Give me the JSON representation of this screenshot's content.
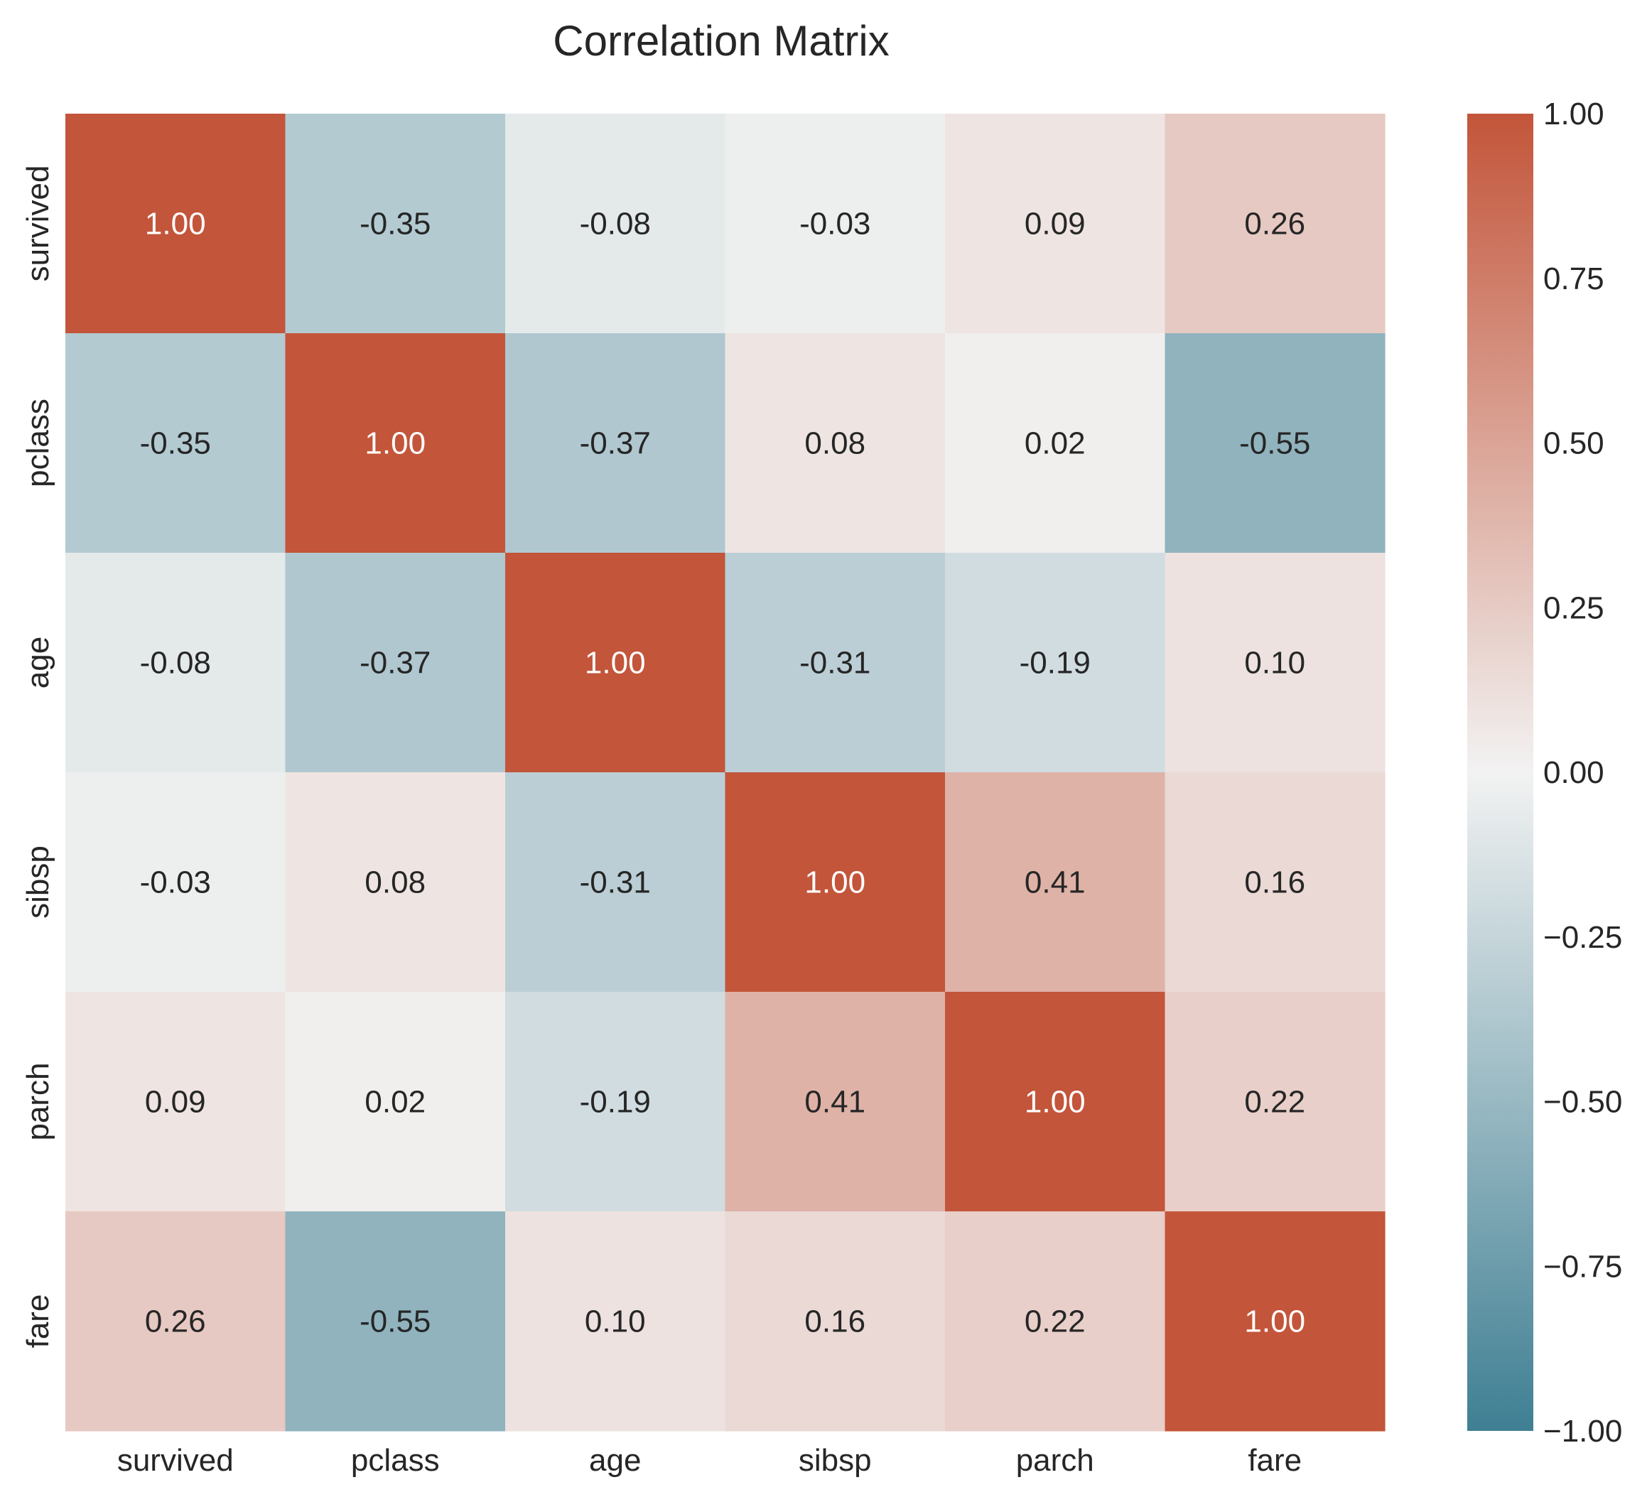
{
  "chart_data": {
    "type": "heatmap",
    "title": "Correlation Matrix",
    "x_labels": [
      "survived",
      "pclass",
      "age",
      "sibsp",
      "parch",
      "fare"
    ],
    "y_labels": [
      "survived",
      "pclass",
      "age",
      "sibsp",
      "parch",
      "fare"
    ],
    "values": [
      [
        1.0,
        -0.35,
        -0.08,
        -0.03,
        0.09,
        0.26
      ],
      [
        -0.35,
        1.0,
        -0.37,
        0.08,
        0.02,
        -0.55
      ],
      [
        -0.08,
        -0.37,
        1.0,
        -0.31,
        -0.19,
        0.1
      ],
      [
        -0.03,
        0.08,
        -0.31,
        1.0,
        0.41,
        0.16
      ],
      [
        0.09,
        0.02,
        -0.19,
        0.41,
        1.0,
        0.22
      ],
      [
        0.26,
        -0.55,
        0.1,
        0.16,
        0.22,
        1.0
      ]
    ],
    "value_format": "0.00",
    "colorbar": {
      "range": [
        -1.0,
        1.0
      ],
      "ticks": [
        "1.00",
        "0.75",
        "0.50",
        "0.25",
        "0.00",
        "−0.25",
        "−0.50",
        "−0.75",
        "−1.00"
      ],
      "colors": {
        "negative": "#3f7f93",
        "zero": "#f2f2f2",
        "positive": "#c3553a"
      }
    },
    "grid": false
  }
}
